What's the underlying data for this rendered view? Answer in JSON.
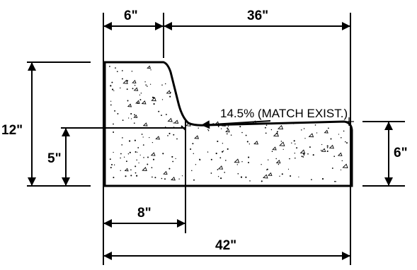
{
  "dimensions": {
    "top_left_width": "6\"",
    "top_right_width": "36\"",
    "overall_height": "12\"",
    "lower_height": "5\"",
    "right_height": "6\"",
    "gutter_width": "8\"",
    "overall_width": "42\""
  },
  "annotation": {
    "slope_note": "14.5% (MATCH EXIST.)"
  }
}
